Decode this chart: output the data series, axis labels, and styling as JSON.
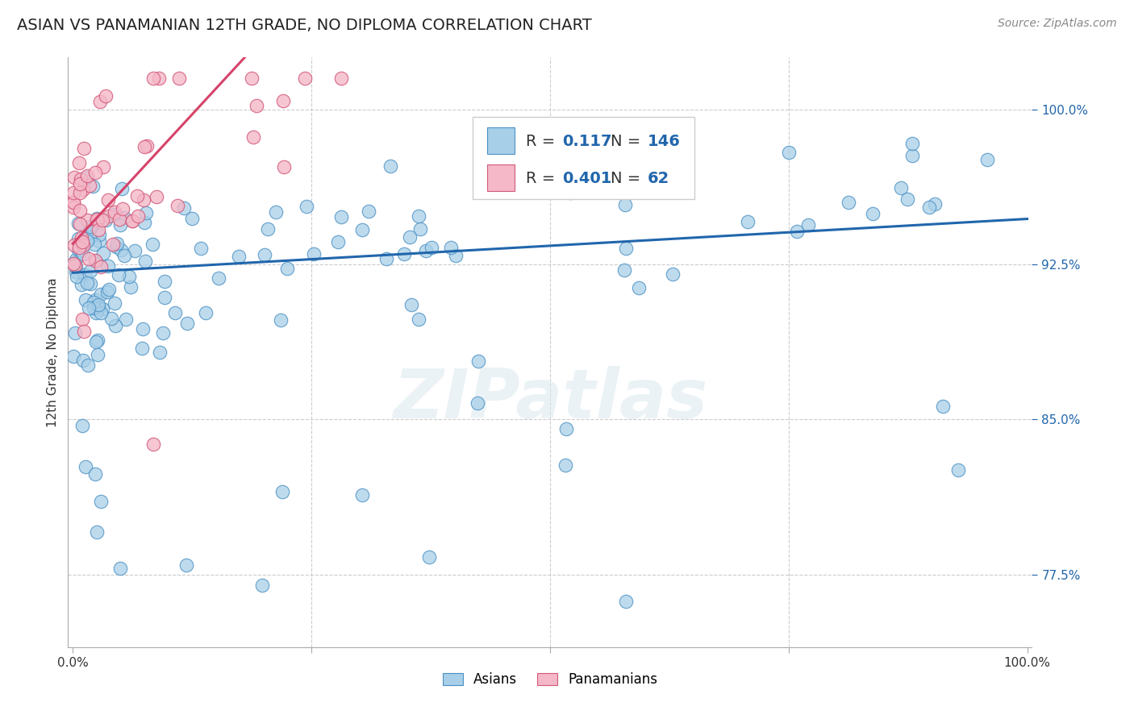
{
  "title": "ASIAN VS PANAMANIAN 12TH GRADE, NO DIPLOMA CORRELATION CHART",
  "source": "Source: ZipAtlas.com",
  "ylabel": "12th Grade, No Diploma",
  "legend_blue_label": "Asians",
  "legend_pink_label": "Panamanians",
  "R_blue": 0.117,
  "N_blue": 146,
  "R_pink": 0.401,
  "N_pink": 62,
  "blue_color": "#a8cfe8",
  "pink_color": "#f4b8c8",
  "blue_edge_color": "#4a90c4",
  "pink_edge_color": "#d45a7a",
  "blue_line_color": "#2166ac",
  "pink_line_color": "#d6436a",
  "background_color": "#ffffff",
  "title_fontsize": 14,
  "source_fontsize": 10,
  "axis_label_fontsize": 11,
  "tick_fontsize": 11,
  "legend_fontsize": 14,
  "watermark_text": "ZIPatlas",
  "ytick_labels": [
    "77.5%",
    "85.0%",
    "92.5%",
    "100.0%"
  ],
  "ytick_values": [
    0.775,
    0.85,
    0.925,
    1.0
  ],
  "y_min": 0.74,
  "y_max": 1.025,
  "x_min": -0.005,
  "x_max": 1.005
}
